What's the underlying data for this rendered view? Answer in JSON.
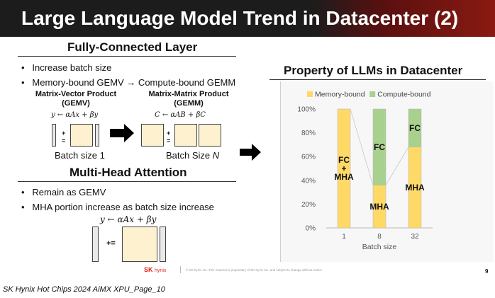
{
  "slide": {
    "title": "Large Language Model Trend in Datacenter (2)",
    "page_number": "9",
    "bottom_caption": "SK Hynix Hot Chips 2024 AiMX XPU_Page_10",
    "logo_text_sk": "SK",
    "logo_text_hynix": "hynix",
    "footer_notice": "© SK hynix Inc. This material is proprietary of SK hynix Inc. and subject to change without notice."
  },
  "fc_section": {
    "heading": "Fully-Connected Layer",
    "bullets": [
      "Increase batch size",
      "Memory-bound GEMV → Compute-bound GEMM"
    ],
    "gemv_label_1": "Matrix-Vector Product",
    "gemv_label_2": "(GEMV)",
    "gemv_formula": "y ← αAx + βy",
    "gemm_label_1": "Matrix-Matrix Product",
    "gemm_label_2": "(GEMM)",
    "gemm_formula": "C ← αAB + βC",
    "plus": "+",
    "equals": "=",
    "batch_caption_1": "Batch size 1",
    "batch_caption_n_prefix": "Batch Size ",
    "batch_caption_n_var": "N"
  },
  "mha_section": {
    "heading": "Multi-Head Attention",
    "bullets": [
      "Remain as GEMV",
      "MHA portion increase as batch size increase"
    ],
    "formula": "y ← αAx + βy",
    "operator": "+="
  },
  "chart_panel": {
    "heading": "Property of LLMs in Datacenter"
  },
  "chart_data": {
    "type": "bar",
    "stacked": true,
    "categories": [
      "1",
      "8",
      "32"
    ],
    "xlabel": "Batch size",
    "ylabel": "",
    "ylim": [
      0,
      100
    ],
    "yticks": [
      "0%",
      "20%",
      "40%",
      "60%",
      "80%",
      "100%"
    ],
    "legend_position": "top",
    "series": [
      {
        "name": "Memory-bound",
        "color": "#ffd966",
        "values": [
          100,
          36,
          68
        ],
        "labels": [
          "FC\n+\nMHA",
          "MHA",
          "MHA"
        ]
      },
      {
        "name": "Compute-bound",
        "color": "#a9d18e",
        "values": [
          0,
          64,
          32
        ],
        "labels": [
          "",
          "FC",
          "FC"
        ]
      }
    ]
  }
}
